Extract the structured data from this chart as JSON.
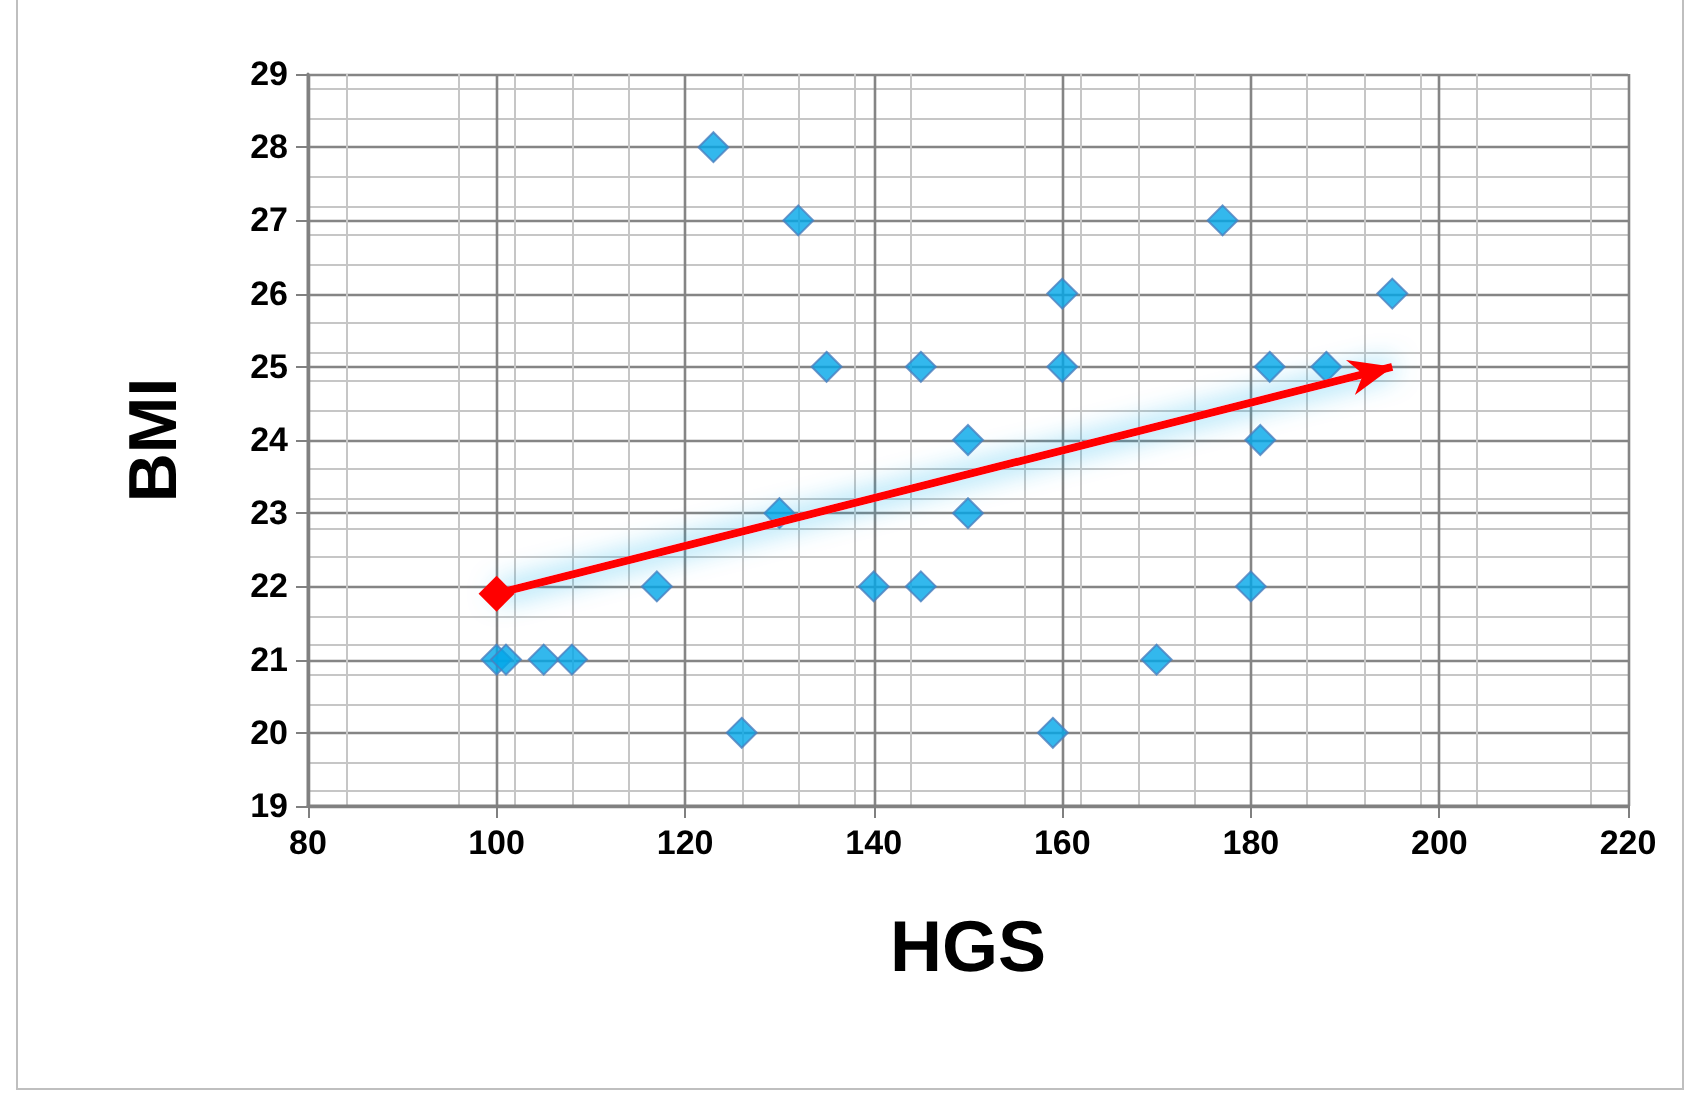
{
  "chart_data": {
    "type": "scatter",
    "xlabel": "HGS",
    "ylabel": "BMI",
    "xlim": [
      80,
      220
    ],
    "xticks": [
      80,
      100,
      120,
      140,
      160,
      180,
      200,
      220
    ],
    "ylim": [
      19,
      29
    ],
    "yticks": [
      19,
      20,
      21,
      22,
      23,
      24,
      25,
      26,
      27,
      28,
      29
    ],
    "grid": true,
    "marker": "diamond",
    "series": [
      {
        "color": "#00a6e8",
        "x": [
          123,
          132,
          177,
          160,
          195,
          135,
          145,
          160,
          182,
          188,
          150,
          181,
          130,
          150,
          117,
          140,
          145,
          180,
          100,
          101,
          105,
          108,
          170,
          126,
          159
        ],
        "values": [
          28,
          27,
          27,
          26,
          26,
          25,
          25,
          25,
          25,
          25,
          24,
          24,
          23,
          23,
          22,
          22,
          22,
          22,
          21,
          21,
          21,
          21,
          21,
          20,
          20
        ]
      },
      {
        "type": "line",
        "color": "#ff0000",
        "x": [
          100,
          195
        ],
        "values": [
          21.9,
          25.0
        ]
      }
    ]
  }
}
